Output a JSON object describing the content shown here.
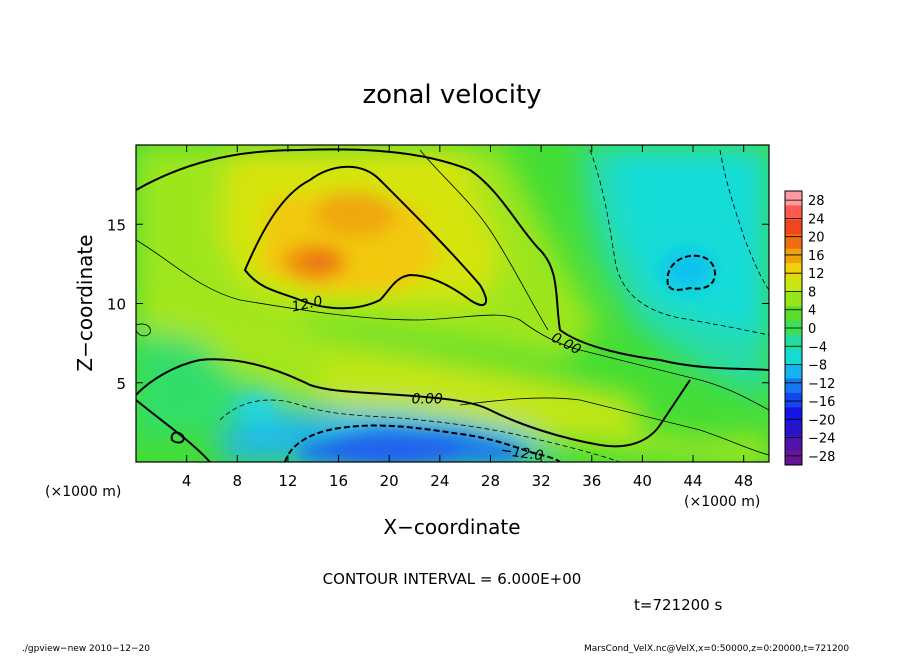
{
  "chart_data": {
    "type": "heatmap",
    "title": "zonal velocity",
    "xlabel": "X−coordinate",
    "ylabel": "Z−coordinate",
    "x_unit": "(×1000 m)",
    "y_unit": "(×1000 m)",
    "xlim": [
      0,
      50
    ],
    "ylim": [
      0,
      20
    ],
    "x_ticks": [
      4,
      8,
      12,
      16,
      20,
      24,
      28,
      32,
      36,
      40,
      44,
      48
    ],
    "y_ticks": [
      5,
      10,
      15
    ],
    "colorbar": {
      "ticks": [
        28,
        24,
        20,
        16,
        12,
        8,
        4,
        0,
        -4,
        -8,
        -12,
        -16,
        -20,
        -24,
        -28
      ],
      "tick_labels": [
        "28",
        "24",
        "20",
        "16",
        "12",
        "8",
        "4",
        "0",
        "−4",
        "−8",
        "−12",
        "−16",
        "−20",
        "−24",
        "−28"
      ],
      "range": [
        -30,
        30
      ]
    },
    "contour_labels": [
      {
        "text": "12.0",
        "x": 13.5,
        "z": 10.0,
        "angle": -12
      },
      {
        "text": "0.00",
        "x": 34.0,
        "z": 7.5,
        "angle": 28
      },
      {
        "text": "0.00",
        "x": 23.0,
        "z": 4.0,
        "angle": 0
      },
      {
        "text": "−12.0",
        "x": 30.5,
        "z": 0.6,
        "angle": 8
      }
    ],
    "contour_interval": "CONTOUR INTERVAL = 6.000E+00",
    "time": "t=721200 s",
    "features": [
      {
        "x": 17,
        "z": 15.5,
        "value": 15
      },
      {
        "x": 14,
        "z": 12.5,
        "value": 17
      },
      {
        "x": 43.5,
        "z": 12,
        "value": -13
      },
      {
        "x": 20,
        "z": 0.3,
        "value": -19
      }
    ]
  },
  "footer": {
    "left": "./gpview−new   2010−12−20",
    "right": "MarsCond_VelX.nc@VelX,x=0:50000,z=0:20000,t=721200"
  }
}
